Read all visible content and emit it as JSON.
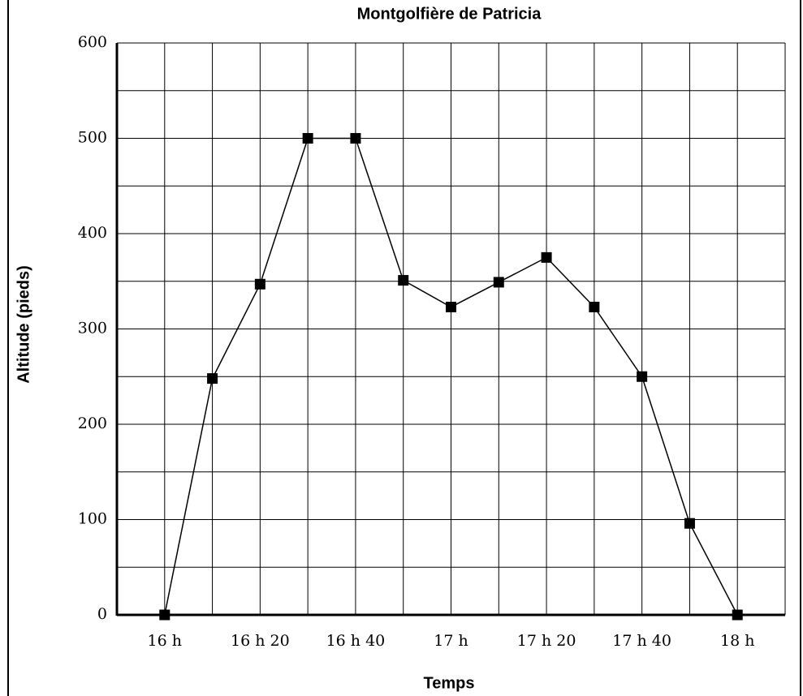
{
  "chart_data": {
    "type": "line",
    "title": "Montgolfière de Patricia",
    "x_label": "Temps",
    "y_label": "Altitude (pieds)",
    "categories": [
      "16 h",
      null,
      "16 h 20",
      null,
      "16 h 40",
      null,
      "17 h",
      null,
      "17 h 20",
      null,
      "17 h 40",
      null,
      "18 h"
    ],
    "values": [
      0,
      248,
      347,
      500,
      500,
      351,
      323,
      349,
      375,
      323,
      250,
      96,
      0
    ],
    "color": "#000000",
    "ylim": [
      0,
      600
    ],
    "yticks": [
      0,
      100,
      200,
      300,
      400,
      500,
      600
    ],
    "yminorticks": [
      50,
      150,
      250,
      350,
      450,
      550
    ],
    "grid": true
  }
}
